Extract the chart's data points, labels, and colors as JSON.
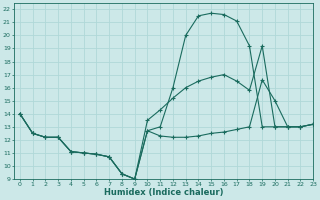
{
  "xlabel": "Humidex (Indice chaleur)",
  "xlim": [
    -0.5,
    23
  ],
  "ylim": [
    9,
    22.5
  ],
  "yticks": [
    9,
    10,
    11,
    12,
    13,
    14,
    15,
    16,
    17,
    18,
    19,
    20,
    21,
    22
  ],
  "xticks": [
    0,
    1,
    2,
    3,
    4,
    5,
    6,
    7,
    8,
    9,
    10,
    11,
    12,
    13,
    14,
    15,
    16,
    17,
    18,
    19,
    20,
    21,
    22,
    23
  ],
  "bg_color": "#cce8e8",
  "line_color": "#1a6b5e",
  "grid_color": "#b0d8d8",
  "line1_x": [
    0,
    1,
    2,
    3,
    4,
    5,
    6,
    7,
    8,
    9,
    10,
    11,
    12,
    13,
    14,
    15,
    16,
    17,
    18,
    19,
    20,
    21,
    22,
    23
  ],
  "line1_y": [
    14,
    12.5,
    12.2,
    12.2,
    11.1,
    11.0,
    10.9,
    10.7,
    9.4,
    9.0,
    12.7,
    13.0,
    16.0,
    20.0,
    21.5,
    21.7,
    21.6,
    21.1,
    19.2,
    13.0,
    13.0,
    13.0,
    13.0,
    13.2
  ],
  "line2_x": [
    0,
    1,
    2,
    3,
    4,
    5,
    6,
    7,
    8,
    9,
    10,
    11,
    12,
    13,
    14,
    15,
    16,
    17,
    18,
    19,
    20,
    21,
    22,
    23
  ],
  "line2_y": [
    14,
    12.5,
    12.2,
    12.2,
    11.1,
    11.0,
    10.9,
    10.7,
    9.4,
    9.0,
    12.7,
    12.3,
    12.2,
    12.2,
    12.3,
    12.5,
    12.6,
    12.8,
    13.0,
    16.6,
    15.0,
    13.0,
    13.0,
    13.2
  ],
  "line3_x": [
    0,
    1,
    2,
    3,
    4,
    5,
    6,
    7,
    8,
    9,
    10,
    11,
    12,
    13,
    14,
    15,
    16,
    17,
    18,
    19,
    20,
    21,
    22,
    23
  ],
  "line3_y": [
    14,
    12.5,
    12.2,
    12.2,
    11.1,
    11.0,
    10.9,
    10.7,
    9.4,
    9.0,
    13.5,
    14.3,
    15.2,
    16.0,
    16.5,
    16.8,
    17.0,
    16.5,
    15.8,
    19.2,
    13.0,
    13.0,
    13.0,
    13.2
  ]
}
